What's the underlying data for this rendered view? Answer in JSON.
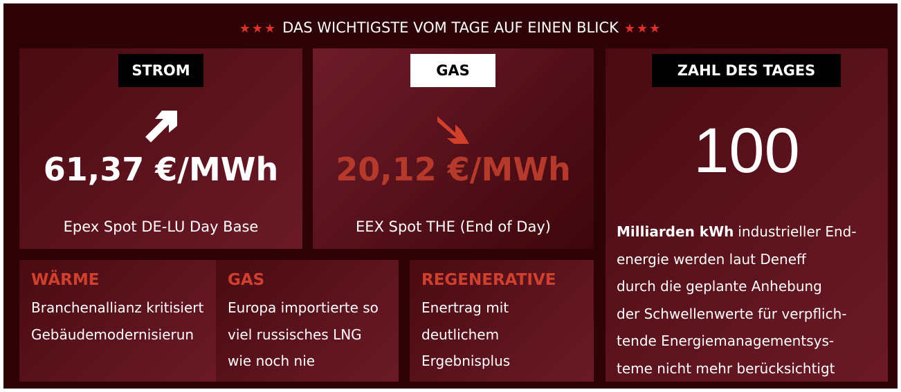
{
  "header": {
    "title": "DAS WICHTIGSTE VOM TAGE AUF EINEN BLICK"
  },
  "prices": [
    {
      "label": "STROM",
      "value": "61,37 €/MWh",
      "source": "Epex Spot DE-LU Day Base"
    },
    {
      "label": "GAS",
      "value": "20,12 €/MWh",
      "source": "EEX Spot THE (End of Day)"
    }
  ],
  "number_of_day": {
    "label": "ZAHL DES TAGES",
    "value": "100",
    "highlight": "Milliarden kWh",
    "lines": [
      "industrieller End-",
      "energie werden laut Deneff",
      "durch die geplante Anhebung",
      "der Schwellenwerte für verpflich-",
      "tende Energiemanagementsys-",
      "teme nicht mehr berücksichtigt"
    ]
  },
  "news": [
    {
      "category": "WÄRME",
      "headline": "Branchenallianz kritisiert Gebäudemodernisierun"
    },
    {
      "category": "GAS",
      "headline": "Europa importierte so viel russisches LNG wie noch nie"
    },
    {
      "category": "REGENERATIVE",
      "headline": "Enertrag mit deutlichem Ergebnisplus"
    }
  ]
}
